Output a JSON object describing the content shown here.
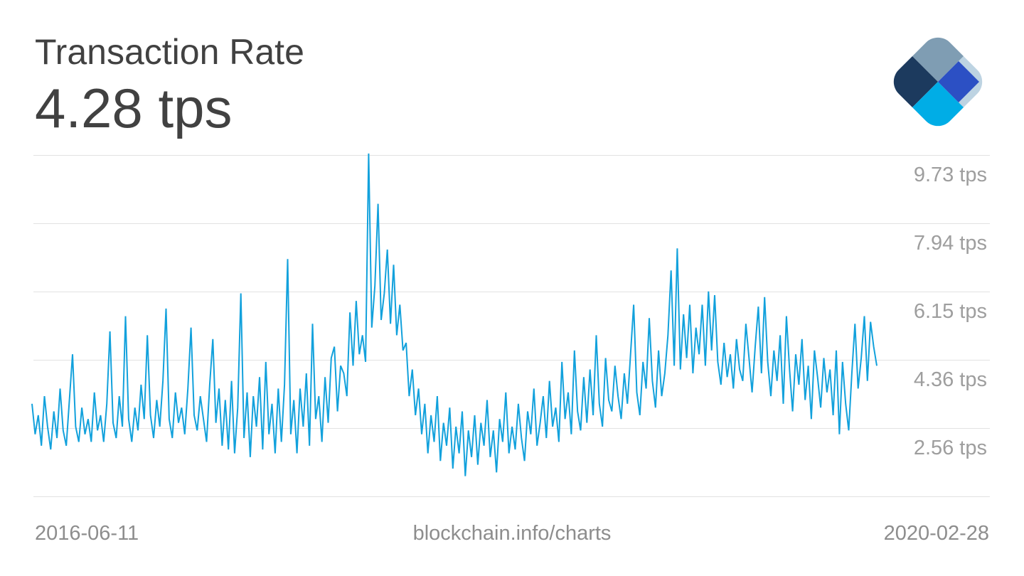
{
  "header": {
    "title": "Transaction Rate",
    "current_value": "4.28 tps"
  },
  "footer": {
    "start_date": "2016-06-11",
    "source": "blockchain.info/charts",
    "end_date": "2020-02-28"
  },
  "logo": {
    "name": "blockchain-logo",
    "colors": {
      "top": "#7f9db3",
      "left": "#1c3a5e",
      "bottom": "#00ade6",
      "right_light": "#bdd3e2",
      "center_blue": "#2c50c4"
    }
  },
  "chart_data": {
    "type": "line",
    "title": "Transaction Rate",
    "current_value": "4.28 tps",
    "unit": "tps",
    "line_color": "#12a1dc",
    "gridline_color": "#e2e2e2",
    "legend": "none",
    "grid": "horizontal",
    "x_range": [
      "2016-06-11",
      "2020-02-28"
    ],
    "ylim": [
      0.77,
      9.73
    ],
    "y_ticks": [
      {
        "value": 9.73,
        "label": "9.73 tps"
      },
      {
        "value": 7.94,
        "label": "7.94 tps"
      },
      {
        "value": 6.15,
        "label": "6.15 tps"
      },
      {
        "value": 4.36,
        "label": "4.36 tps"
      },
      {
        "value": 2.56,
        "label": "2.56 tps"
      }
    ],
    "gridline_values": [
      9.73,
      7.94,
      6.15,
      4.36,
      2.56,
      0.77
    ],
    "values": [
      3.2,
      2.4,
      2.9,
      2.1,
      3.4,
      2.6,
      2.0,
      3.0,
      2.3,
      3.6,
      2.5,
      2.1,
      3.3,
      4.5,
      2.6,
      2.2,
      3.1,
      2.4,
      2.8,
      2.2,
      3.5,
      2.5,
      2.9,
      2.2,
      3.2,
      5.1,
      2.7,
      2.3,
      3.4,
      2.6,
      5.5,
      2.8,
      2.2,
      3.1,
      2.5,
      3.7,
      2.8,
      5.0,
      2.9,
      2.3,
      3.3,
      2.6,
      3.8,
      5.7,
      2.8,
      2.3,
      3.5,
      2.7,
      3.1,
      2.4,
      3.6,
      5.2,
      2.9,
      2.5,
      3.4,
      2.8,
      2.2,
      3.7,
      4.9,
      2.7,
      3.6,
      2.1,
      3.3,
      2.0,
      3.8,
      1.9,
      3.1,
      6.1,
      2.3,
      3.5,
      1.8,
      3.4,
      2.6,
      3.9,
      2.0,
      4.3,
      2.4,
      3.2,
      1.9,
      3.6,
      2.2,
      3.7,
      7.0,
      2.4,
      3.3,
      1.9,
      3.6,
      2.6,
      4.0,
      2.1,
      5.3,
      2.8,
      3.4,
      2.2,
      3.9,
      2.7,
      4.4,
      4.7,
      3.0,
      4.2,
      4.0,
      3.4,
      5.6,
      4.2,
      5.9,
      4.5,
      5.0,
      4.3,
      9.77,
      5.2,
      6.3,
      8.45,
      5.4,
      6.1,
      7.25,
      5.3,
      6.85,
      5.0,
      5.8,
      4.6,
      4.8,
      3.4,
      4.1,
      2.9,
      3.6,
      2.4,
      3.2,
      1.9,
      2.9,
      2.2,
      3.4,
      1.7,
      2.7,
      2.1,
      3.1,
      1.5,
      2.6,
      1.9,
      3.0,
      1.3,
      2.5,
      1.8,
      2.9,
      1.6,
      2.7,
      2.1,
      3.3,
      1.8,
      2.5,
      1.4,
      2.8,
      2.2,
      3.5,
      1.9,
      2.6,
      2.0,
      3.2,
      2.3,
      1.7,
      3.0,
      2.4,
      3.6,
      2.1,
      2.7,
      3.4,
      2.3,
      3.8,
      2.6,
      3.1,
      2.2,
      4.3,
      2.8,
      3.5,
      2.4,
      4.6,
      3.0,
      2.5,
      3.9,
      2.7,
      4.1,
      2.9,
      5.0,
      3.2,
      2.6,
      4.4,
      3.3,
      3.0,
      4.2,
      3.4,
      2.8,
      4.0,
      3.2,
      4.5,
      5.8,
      3.5,
      2.9,
      4.3,
      3.6,
      5.45,
      3.8,
      3.1,
      4.6,
      3.4,
      4.0,
      5.0,
      6.7,
      4.2,
      7.28,
      4.1,
      5.55,
      4.4,
      5.8,
      4.0,
      5.2,
      4.5,
      5.8,
      4.2,
      6.15,
      4.6,
      6.05,
      4.3,
      3.7,
      4.8,
      3.9,
      4.5,
      3.6,
      4.9,
      4.1,
      3.8,
      5.3,
      4.4,
      3.5,
      4.7,
      5.75,
      4.0,
      6.0,
      4.3,
      3.4,
      4.6,
      3.8,
      5.0,
      3.2,
      5.5,
      4.1,
      3.0,
      4.5,
      3.7,
      4.9,
      3.3,
      4.2,
      2.8,
      4.6,
      3.9,
      3.1,
      4.4,
      3.5,
      4.1,
      2.9,
      4.6,
      2.4,
      4.3,
      3.2,
      2.5,
      4.0,
      5.3,
      3.6,
      4.4,
      5.5,
      3.8,
      5.35,
      4.7,
      4.2
    ]
  }
}
